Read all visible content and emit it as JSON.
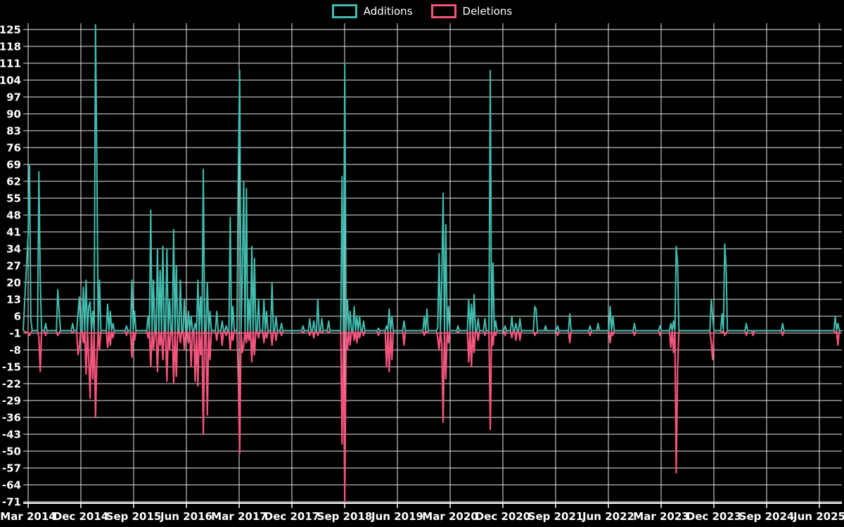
{
  "legend": {
    "items": [
      {
        "label": "Additions",
        "color": "#41bdb0"
      },
      {
        "label": "Deletions",
        "color": "#f4547c"
      }
    ]
  },
  "chart_data": {
    "type": "line",
    "title": "",
    "description": "Weekly additions and deletions line chart (code frequency style) on black background",
    "legend_position": "top-center",
    "grid": true,
    "colors": {
      "additions": "#41bdb0",
      "deletions": "#f4547c",
      "grid": "#e8e8e8",
      "axis": "#ffffff",
      "text": "#ffffff",
      "background": "#000000"
    },
    "y_axis": {
      "min": -71,
      "max": 125,
      "step": 7,
      "ticks": [
        125,
        118,
        111,
        104,
        97,
        90,
        83,
        76,
        69,
        62,
        55,
        48,
        41,
        34,
        27,
        20,
        13,
        6,
        -1,
        -8,
        -15,
        -22,
        -29,
        -36,
        -43,
        -50,
        -57,
        -64,
        -71
      ]
    },
    "x_axis": {
      "labels": [
        "Mar 2014",
        "Dec 2014",
        "Sep 2015",
        "Jun 2016",
        "Mar 2017",
        "Dec 2017",
        "Sep 2018",
        "Jun 2019",
        "Mar 2020",
        "Dec 2020",
        "Sep 2021",
        "Jun 2022",
        "Mar 2023",
        "Dec 2023",
        "Sep 2024",
        "Jun 2025"
      ],
      "label_interval_months": 9,
      "unit": "week"
    },
    "series_names": [
      "Additions",
      "Deletions"
    ],
    "weeks_total": 604,
    "baseline_value": 0,
    "points_format": [
      "week_index_from_Mar_2014",
      "additions",
      "deletions"
    ],
    "points": [
      [
        0,
        40,
        -1
      ],
      [
        1,
        69,
        -2
      ],
      [
        2,
        5,
        -1
      ],
      [
        8,
        66,
        -3
      ],
      [
        9,
        21,
        -17
      ],
      [
        13,
        3,
        -2
      ],
      [
        22,
        17,
        -2
      ],
      [
        23,
        8,
        -1
      ],
      [
        33,
        3,
        -1
      ],
      [
        37,
        7,
        -10
      ],
      [
        38,
        14,
        -7
      ],
      [
        41,
        18,
        -5
      ],
      [
        43,
        21,
        -18
      ],
      [
        45,
        10,
        -12
      ],
      [
        46,
        12,
        -28
      ],
      [
        48,
        8,
        -20
      ],
      [
        50,
        127,
        -36
      ],
      [
        51,
        70,
        -12
      ],
      [
        53,
        21,
        -8
      ],
      [
        59,
        11,
        -7
      ],
      [
        61,
        8,
        -6
      ],
      [
        63,
        3,
        -3
      ],
      [
        73,
        2,
        -2
      ],
      [
        77,
        21,
        -11
      ],
      [
        79,
        8,
        -4
      ],
      [
        89,
        6,
        -3
      ],
      [
        91,
        50,
        -15
      ],
      [
        93,
        21,
        -8
      ],
      [
        96,
        34,
        -17
      ],
      [
        98,
        25,
        -6
      ],
      [
        100,
        35,
        -12
      ],
      [
        103,
        34,
        -21
      ],
      [
        105,
        13,
        -8
      ],
      [
        108,
        42,
        -22
      ],
      [
        110,
        27,
        -19
      ],
      [
        113,
        21,
        -5
      ],
      [
        116,
        13,
        -8
      ],
      [
        119,
        8,
        -5
      ],
      [
        121,
        6,
        -15
      ],
      [
        124,
        3,
        -21
      ],
      [
        126,
        21,
        -23
      ],
      [
        128,
        14,
        -10
      ],
      [
        130,
        67,
        -43
      ],
      [
        133,
        20,
        -35
      ],
      [
        135,
        8,
        -12
      ],
      [
        140,
        8,
        -4
      ],
      [
        144,
        4,
        -6
      ],
      [
        147,
        2,
        -2
      ],
      [
        150,
        47,
        -8
      ],
      [
        152,
        10,
        -4
      ],
      [
        156,
        68,
        -20
      ],
      [
        157,
        108,
        -51
      ],
      [
        159,
        25,
        -9
      ],
      [
        160,
        62,
        -6
      ],
      [
        162,
        59,
        -5
      ],
      [
        164,
        13,
        -4
      ],
      [
        166,
        35,
        -13
      ],
      [
        168,
        30,
        -10
      ],
      [
        171,
        13,
        -3
      ],
      [
        175,
        13,
        -5
      ],
      [
        177,
        8,
        -3
      ],
      [
        181,
        20,
        -6
      ],
      [
        184,
        6,
        -4
      ],
      [
        188,
        3,
        -2
      ],
      [
        204,
        2,
        -1
      ],
      [
        209,
        5,
        -2
      ],
      [
        212,
        4,
        -3
      ],
      [
        215,
        13,
        -2
      ],
      [
        218,
        5,
        -1
      ],
      [
        223,
        4,
        -1
      ],
      [
        233,
        64,
        -47
      ],
      [
        235,
        111,
        -71
      ],
      [
        237,
        13,
        -8
      ],
      [
        239,
        8,
        -6
      ],
      [
        242,
        10,
        -4
      ],
      [
        244,
        6,
        -5
      ],
      [
        246,
        6,
        -3
      ],
      [
        249,
        4,
        -2
      ],
      [
        260,
        1,
        -2
      ],
      [
        266,
        2,
        -15
      ],
      [
        268,
        9,
        -17
      ],
      [
        270,
        6,
        -12
      ],
      [
        279,
        4,
        -6
      ],
      [
        294,
        6,
        -2
      ],
      [
        296,
        9,
        -1
      ],
      [
        304,
        1,
        -3
      ],
      [
        305,
        32,
        -8
      ],
      [
        307,
        21,
        -6
      ],
      [
        308,
        57,
        -38
      ],
      [
        310,
        44,
        -20
      ],
      [
        312,
        10,
        -5
      ],
      [
        319,
        2,
        -1
      ],
      [
        327,
        13,
        -13
      ],
      [
        329,
        11,
        -15
      ],
      [
        331,
        15,
        -9
      ],
      [
        334,
        5,
        -4
      ],
      [
        339,
        5,
        -2
      ],
      [
        343,
        108,
        -41
      ],
      [
        345,
        28,
        -6
      ],
      [
        347,
        4,
        -2
      ],
      [
        354,
        2,
        -2
      ],
      [
        359,
        6,
        -3
      ],
      [
        362,
        3,
        -4
      ],
      [
        365,
        5,
        -4
      ],
      [
        376,
        10,
        -2
      ],
      [
        377,
        9,
        -1
      ],
      [
        384,
        2,
        0
      ],
      [
        393,
        2,
        -2
      ],
      [
        402,
        7,
        -5
      ],
      [
        417,
        2,
        -2
      ],
      [
        423,
        3,
        0
      ],
      [
        432,
        10,
        -5
      ],
      [
        434,
        6,
        -2
      ],
      [
        450,
        3,
        -2
      ],
      [
        469,
        2,
        -2
      ],
      [
        477,
        3,
        -7
      ],
      [
        479,
        4,
        -9
      ],
      [
        481,
        35,
        -59
      ],
      [
        482,
        28,
        -16
      ],
      [
        507,
        13,
        -5
      ],
      [
        508,
        6,
        -12
      ],
      [
        515,
        7,
        -1
      ],
      [
        517,
        36,
        -2
      ],
      [
        518,
        27,
        -1
      ],
      [
        533,
        3,
        -2
      ],
      [
        538,
        0,
        -2
      ],
      [
        560,
        3,
        -2
      ],
      [
        599,
        6,
        -1
      ],
      [
        601,
        3,
        -6
      ]
    ]
  }
}
